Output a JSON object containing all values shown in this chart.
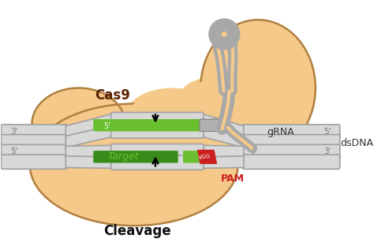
{
  "bg_color": "#ffffff",
  "cas9_color": "#f5c98a",
  "cas9_outline": "#b08040",
  "grna_color": "#b0b0b0",
  "grna_outline": "#808080",
  "dna_color": "#d8d8d8",
  "dna_outline": "#a0a0a0",
  "green_bright": "#6abf2e",
  "green_dark": "#3a8c1a",
  "red_color": "#cc2020",
  "cas9_label": "Cas9",
  "cas9_label_color": "#5a2200",
  "grna_label": "gRNA",
  "dsdna_label": "dsDNA",
  "target_label": "Target",
  "pam_label": "PAM",
  "cleavage_label": "Cleavage",
  "vgg_label": "VGG"
}
